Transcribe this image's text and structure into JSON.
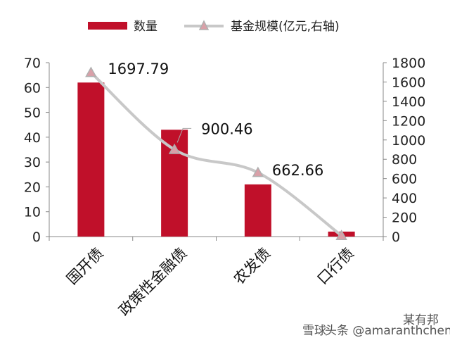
{
  "chart_data": {
    "type": "bar",
    "categories": [
      "国开债",
      "政策性金融债",
      "农发债",
      "口行债"
    ],
    "series": [
      {
        "name": "数量",
        "axis": "left",
        "kind": "bar",
        "color": "#c0102a",
        "values": [
          62,
          43,
          21,
          2
        ]
      },
      {
        "name": "基金规模(亿元,右轴)",
        "axis": "right",
        "kind": "line",
        "color": "#c8c8c8",
        "values": [
          1697.79,
          900.46,
          662.66,
          10
        ],
        "labels": [
          "1697.79",
          "900.46",
          "662.66",
          ""
        ]
      }
    ],
    "y_left": {
      "min": 0,
      "max": 70,
      "ticks": [
        "0",
        "10",
        "20",
        "30",
        "40",
        "50",
        "60",
        "70"
      ]
    },
    "y_right": {
      "min": 0,
      "max": 1800,
      "ticks": [
        "0",
        "200",
        "400",
        "600",
        "800",
        "1000",
        "1200",
        "1400",
        "1600",
        "1800"
      ]
    },
    "legend_position": "top",
    "grid": false
  },
  "watermark": {
    "text": "头条 @amaranthcheng",
    "small": "雪球",
    "corner": "某有邦"
  }
}
